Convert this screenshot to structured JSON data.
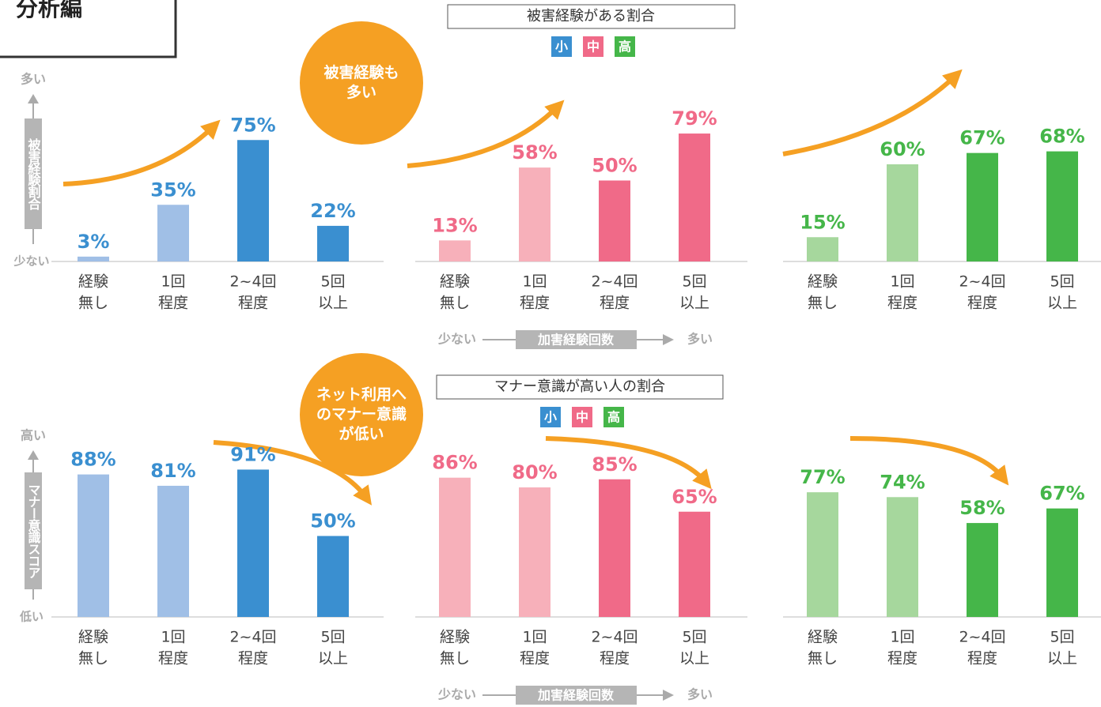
{
  "header": {
    "title": "分析編"
  },
  "groups": [
    {
      "title": "被害経験がある割合",
      "legend": [
        "小",
        "中",
        "高"
      ],
      "legend_colors": [
        "#3a8fd0",
        "#f06a88",
        "#45b649"
      ],
      "y_axis_label": "被害経験割合",
      "y_high": "多い",
      "y_low": "少ない",
      "x_axis_label": "加害経験回数",
      "x_low": "少ない",
      "x_high": "多い",
      "callout": [
        "被害経験も",
        "多い"
      ]
    },
    {
      "title": "マナー意識が高い人の割合",
      "legend": [
        "小",
        "中",
        "高"
      ],
      "legend_colors": [
        "#3a8fd0",
        "#f06a88",
        "#45b649"
      ],
      "y_axis_label": "マナー意識スコア",
      "y_high": "高い",
      "y_low": "低い",
      "x_axis_label": "加害経験回数",
      "x_low": "少ない",
      "x_high": "多い",
      "callout": [
        "ネット利用へ",
        "のマナー意識",
        "が低い"
      ]
    }
  ],
  "chart_data": [
    {
      "type": "bar",
      "categories": [
        [
          "経験",
          "無し"
        ],
        [
          "1回",
          "程度"
        ],
        [
          "2~4回",
          "程度"
        ],
        [
          "5回",
          "以上"
        ]
      ],
      "values": [
        3,
        35,
        75,
        22
      ],
      "value_labels": [
        "3%",
        "35%",
        "75%",
        "22%"
      ],
      "colors": [
        "#a0bfe6",
        "#a0bfe6",
        "#3a8fd0",
        "#3a8fd0"
      ],
      "label_color": "#3a8fd0",
      "ylim": [
        0,
        100
      ]
    },
    {
      "type": "bar",
      "categories": [
        [
          "経験",
          "無し"
        ],
        [
          "1回",
          "程度"
        ],
        [
          "2~4回",
          "程度"
        ],
        [
          "5回",
          "以上"
        ]
      ],
      "values": [
        13,
        58,
        50,
        79
      ],
      "value_labels": [
        "13%",
        "58%",
        "50%",
        "79%"
      ],
      "colors": [
        "#f7b0ba",
        "#f7b0ba",
        "#f06a88",
        "#f06a88"
      ],
      "label_color": "#f06a88",
      "ylim": [
        0,
        100
      ]
    },
    {
      "type": "bar",
      "categories": [
        [
          "経験",
          "無し"
        ],
        [
          "1回",
          "程度"
        ],
        [
          "2~4回",
          "程度"
        ],
        [
          "5回",
          "以上"
        ]
      ],
      "values": [
        15,
        60,
        67,
        68
      ],
      "value_labels": [
        "15%",
        "60%",
        "67%",
        "68%"
      ],
      "colors": [
        "#a6d79d",
        "#a6d79d",
        "#45b649",
        "#45b649"
      ],
      "label_color": "#45b649",
      "ylim": [
        0,
        100
      ]
    },
    {
      "type": "bar",
      "categories": [
        [
          "経験",
          "無し"
        ],
        [
          "1回",
          "程度"
        ],
        [
          "2~4回",
          "程度"
        ],
        [
          "5回",
          "以上"
        ]
      ],
      "values": [
        88,
        81,
        91,
        50
      ],
      "value_labels": [
        "88%",
        "81%",
        "91%",
        "50%"
      ],
      "colors": [
        "#a0bfe6",
        "#a0bfe6",
        "#3a8fd0",
        "#3a8fd0"
      ],
      "label_color": "#3a8fd0",
      "ylim": [
        0,
        100
      ]
    },
    {
      "type": "bar",
      "categories": [
        [
          "経験",
          "無し"
        ],
        [
          "1回",
          "程度"
        ],
        [
          "2~4回",
          "程度"
        ],
        [
          "5回",
          "以上"
        ]
      ],
      "values": [
        86,
        80,
        85,
        65
      ],
      "value_labels": [
        "86%",
        "80%",
        "85%",
        "65%"
      ],
      "colors": [
        "#f7b0ba",
        "#f7b0ba",
        "#f06a88",
        "#f06a88"
      ],
      "label_color": "#f06a88",
      "ylim": [
        0,
        100
      ]
    },
    {
      "type": "bar",
      "categories": [
        [
          "経験",
          "無し"
        ],
        [
          "1回",
          "程度"
        ],
        [
          "2~4回",
          "程度"
        ],
        [
          "5回",
          "以上"
        ]
      ],
      "values": [
        77,
        74,
        58,
        67
      ],
      "value_labels": [
        "77%",
        "74%",
        "58%",
        "67%"
      ],
      "colors": [
        "#a6d79d",
        "#a6d79d",
        "#45b649",
        "#45b649"
      ],
      "label_color": "#45b649",
      "ylim": [
        0,
        100
      ]
    }
  ]
}
